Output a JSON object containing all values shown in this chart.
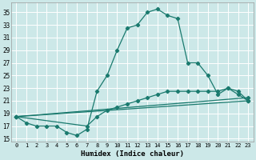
{
  "xlabel": "Humidex (Indice chaleur)",
  "background_color": "#cce8e8",
  "grid_color": "#ffffff",
  "line_color": "#1a7a6e",
  "xlim": [
    -0.5,
    23.5
  ],
  "ylim": [
    14.5,
    36.5
  ],
  "xticks": [
    0,
    1,
    2,
    3,
    4,
    5,
    6,
    7,
    8,
    9,
    10,
    11,
    12,
    13,
    14,
    15,
    16,
    17,
    18,
    19,
    20,
    21,
    22,
    23
  ],
  "yticks": [
    15,
    17,
    19,
    21,
    23,
    25,
    27,
    29,
    31,
    33,
    35
  ],
  "main_curve": {
    "x": [
      0,
      1,
      2,
      3,
      4,
      5,
      6,
      7,
      8,
      9,
      10,
      11,
      12,
      13,
      14,
      15,
      16,
      17,
      18,
      19,
      20,
      21,
      22,
      23
    ],
    "y": [
      18.5,
      17.5,
      17.0,
      17.0,
      17.0,
      16.0,
      15.5,
      16.5,
      22.5,
      25.0,
      29.0,
      32.5,
      33.0,
      35.0,
      35.5,
      34.5,
      34.0,
      27.0,
      27.0,
      25.0,
      22.0,
      23.0,
      22.5,
      21.0
    ]
  },
  "line2": {
    "x": [
      0,
      7,
      8,
      9,
      10,
      11,
      12,
      13,
      14,
      15,
      16,
      17,
      18,
      19,
      20,
      21,
      22,
      23
    ],
    "y": [
      18.5,
      17.0,
      18.5,
      19.5,
      20.0,
      20.5,
      21.0,
      21.5,
      22.0,
      22.5,
      22.5,
      22.5,
      22.5,
      22.5,
      22.5,
      23.0,
      22.0,
      21.0
    ]
  },
  "line3": {
    "x": [
      0,
      23
    ],
    "y": [
      18.5,
      21.5
    ]
  },
  "line4": {
    "x": [
      0,
      23
    ],
    "y": [
      18.5,
      21.0
    ]
  }
}
